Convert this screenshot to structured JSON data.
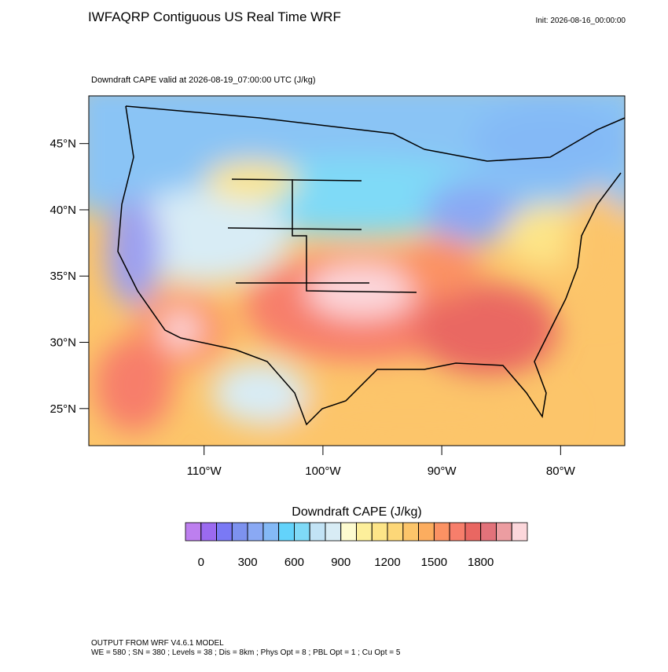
{
  "header": {
    "title": "IWFAQRP Contiguous US Real Time WRF",
    "init": "Init: 2026-08-16_00:00:00"
  },
  "map": {
    "subtitle": "Downdraft CAPE valid at 2026-08-19_07:00:00 UTC   (J/kg)",
    "lat_lim": [
      22.2,
      48.6
    ],
    "lon_lim": [
      -119.7,
      -74.6
    ],
    "lat_ticks": [
      {
        "value": 45,
        "label": "45°N"
      },
      {
        "value": 40,
        "label": "40°N"
      },
      {
        "value": 35,
        "label": "35°N"
      },
      {
        "value": 30,
        "label": "30°N"
      },
      {
        "value": 25,
        "label": "25°N"
      }
    ],
    "lon_ticks": [
      {
        "value": -110,
        "label": "110°W"
      },
      {
        "value": -100,
        "label": "100°W"
      },
      {
        "value": -90,
        "label": "90°W"
      },
      {
        "value": -80,
        "label": "80°W"
      }
    ]
  },
  "colorbar": {
    "title": "Downdraft CAPE  (J/kg)",
    "levels": [
      0,
      100,
      200,
      300,
      400,
      500,
      600,
      700,
      800,
      900,
      1000,
      1100,
      1200,
      1300,
      1400,
      1500,
      1600,
      1700,
      1800,
      1900,
      2000
    ],
    "colors": [
      "#bd7fef",
      "#9b6af0",
      "#7a79f5",
      "#7d92ef",
      "#8aa9f4",
      "#84b9f6",
      "#63d3fb",
      "#7fdaf7",
      "#c2e3f5",
      "#d8ecf5",
      "#fdfbcf",
      "#fdef9b",
      "#fde588",
      "#fdd778",
      "#fcc56a",
      "#fcad5f",
      "#fb9263",
      "#f77e6b",
      "#e96762",
      "#e2727a",
      "#ec9da1",
      "#fcd7db"
    ],
    "tick_labels": [
      0,
      300,
      600,
      900,
      1200,
      1500,
      1800
    ]
  },
  "footer": {
    "line1": "OUTPUT FROM WRF V4.6.1 MODEL",
    "line2": "WE = 580 ; SN = 380 ; Levels = 38 ; Dis = 8km ; Phys Opt = 8 ; PBL Opt = 1 ; Cu Opt = 5"
  }
}
